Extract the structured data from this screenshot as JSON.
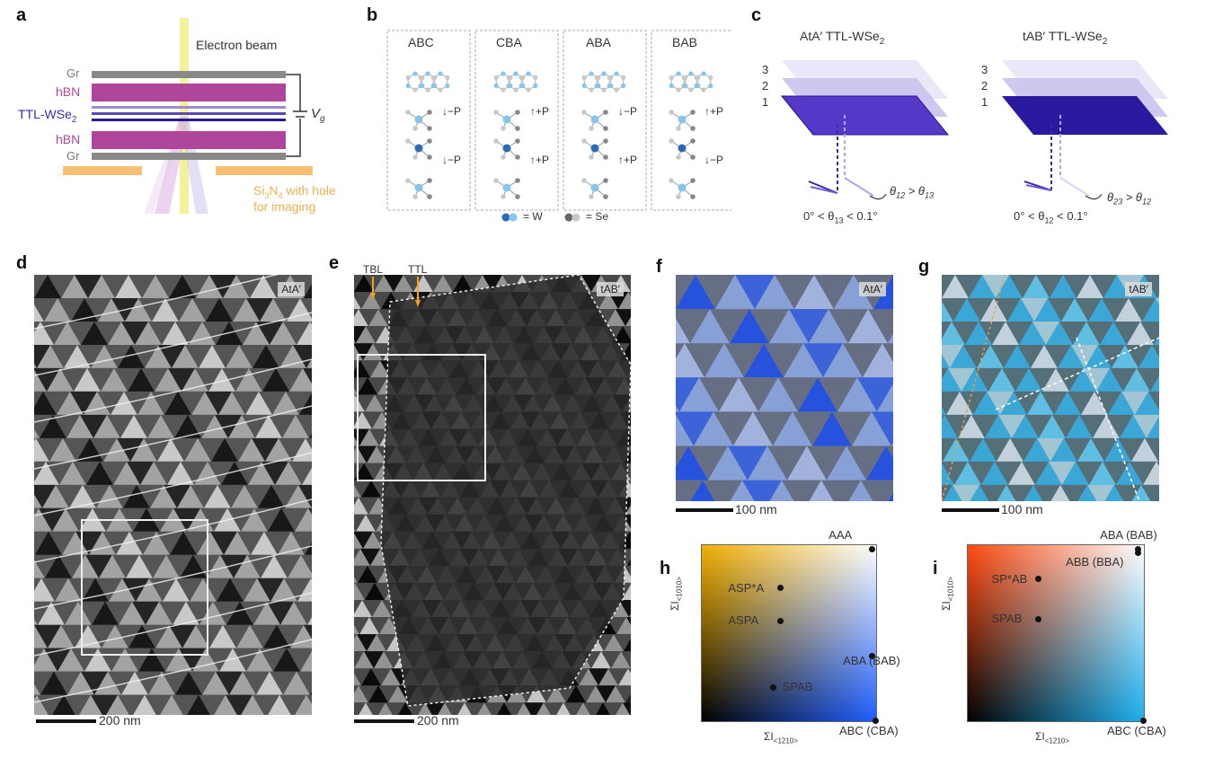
{
  "panels": {
    "a": "a",
    "b": "b",
    "c": "c",
    "d": "d",
    "e": "e",
    "f": "f",
    "g": "g",
    "h": "h",
    "i": "i"
  },
  "a": {
    "electron_beam": "Electron beam",
    "gr_top": "Gr",
    "hbn_top": "hBN",
    "ttl": "TTL-WSe",
    "ttl_sub": "2",
    "hbn_bot": "hBN",
    "gr_bot": "Gr",
    "vg": "V",
    "vg_sub": "g",
    "sin_line1": "Si",
    "sin_sub1": "3",
    "sin_mid": "N",
    "sin_sub2": "4",
    "sin_rest": " with hole",
    "sin_line2": "for imaging"
  },
  "b": {
    "stackings": [
      "ABC",
      "CBA",
      "ABA",
      "BAB"
    ],
    "arrows": [
      [
        "↓−P",
        "↓−P"
      ],
      [
        "↑+P",
        "↑+P"
      ],
      [
        "↓−P",
        "↑+P"
      ],
      [
        "↑+P",
        "↓−P"
      ]
    ],
    "legend_w": "= W",
    "legend_se": "= Se"
  },
  "c": {
    "left_title": "AtA′ TTL-WSe",
    "left_title_sub": "2",
    "right_title": "tAB′ TTL-WSe",
    "right_title_sub": "2",
    "layers": [
      "3",
      "2",
      "1"
    ],
    "left_theta": "θ",
    "left_theta_a": "12",
    "left_theta_gt": " > θ",
    "left_theta_b": "13",
    "left_range": "0° < θ",
    "left_range_sub": "13",
    "left_range_end": " < 0.1°",
    "right_theta": "θ",
    "right_theta_a": "23",
    "right_theta_gt": " > θ",
    "right_theta_b": "12",
    "right_range": "0° < θ",
    "right_range_sub": "12",
    "right_range_end": " < 0.1°"
  },
  "d": {
    "tag": "AtA′",
    "scale": "200 nm"
  },
  "e": {
    "tag": "tAB′",
    "scale": "200 nm",
    "tbl": "TBL",
    "ttl": "TTL"
  },
  "f": {
    "tag": "AtA′",
    "scale": "100 nm"
  },
  "g": {
    "tag": "tAB′",
    "scale": "100 nm"
  },
  "h": {
    "ylabel": "ΣI",
    "ylabel_sub": "<1010>",
    "xlabel": "ΣI",
    "xlabel_sub": "<1210>",
    "colors": {
      "top_left": "#f2b000",
      "top_right": "#ffffff",
      "bottom_left": "#000000",
      "bottom_right": "#1f5fff"
    },
    "points": [
      {
        "label": "AAA",
        "x": 0.98,
        "y": 0.98
      },
      {
        "label": "ASP*A",
        "x": 0.45,
        "y": 0.76
      },
      {
        "label": "ASPA",
        "x": 0.45,
        "y": 0.57
      },
      {
        "label": "ABA (BAB)",
        "x": 0.98,
        "y": 0.37
      },
      {
        "label": "SPAB",
        "x": 0.41,
        "y": 0.19
      },
      {
        "label": "ABC (CBA)",
        "x": 1.0,
        "y": 0.0
      }
    ]
  },
  "i": {
    "ylabel": "ΣI",
    "ylabel_sub": "<1010>",
    "xlabel": "ΣI",
    "xlabel_sub": "<1210>",
    "colors": {
      "top_left": "#ff4a10",
      "top_right": "#ffffff",
      "bottom_left": "#000000",
      "bottom_right": "#1cb0f0"
    },
    "points": [
      {
        "label": "ABA (BAB)",
        "x": 0.97,
        "y": 0.98
      },
      {
        "label": "ABB (BBA)",
        "x": 0.97,
        "y": 0.96
      },
      {
        "label": "SP*AB",
        "x": 0.4,
        "y": 0.81
      },
      {
        "label": "SPAB",
        "x": 0.4,
        "y": 0.58
      },
      {
        "label": "ABC (CBA)",
        "x": 1.0,
        "y": 0.0
      }
    ]
  }
}
